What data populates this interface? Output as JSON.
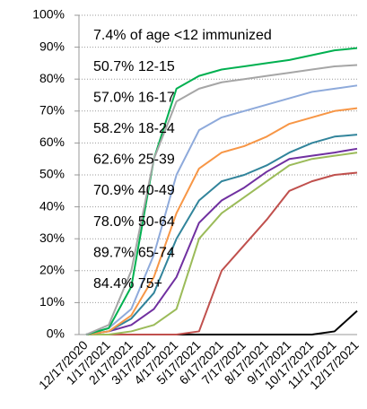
{
  "chart_data": {
    "type": "line",
    "x": [
      "12/17/2020",
      "1/17/2021",
      "2/17/2021",
      "3/17/2021",
      "4/17/2021",
      "5/17/2021",
      "6/17/2021",
      "7/17/2021",
      "8/17/2021",
      "9/17/2021",
      "10/17/2021",
      "11/17/2021",
      "12/17/2021"
    ],
    "series": [
      {
        "name": "7.4% of age <12 immunized",
        "color": "#000000",
        "values": [
          0,
          0,
          0,
          0,
          0,
          0,
          0,
          0,
          0,
          0,
          0,
          1,
          7.4
        ]
      },
      {
        "name": "50.7% 12-15",
        "color": "#c0504d",
        "values": [
          0,
          0,
          0,
          0,
          0,
          1,
          20,
          28,
          36,
          45,
          48,
          50,
          50.7
        ]
      },
      {
        "name": "57.0% 16-17",
        "color": "#9bbb59",
        "values": [
          0,
          0,
          1,
          3,
          8,
          30,
          38,
          43,
          48,
          53,
          55,
          56,
          57.0
        ]
      },
      {
        "name": "58.2% 18-24",
        "color": "#7030a0",
        "values": [
          0,
          1,
          3,
          8,
          18,
          35,
          42,
          46,
          51,
          55,
          56,
          57,
          58.2
        ]
      },
      {
        "name": "62.6% 25-39",
        "color": "#31849b",
        "values": [
          0,
          1,
          5,
          13,
          30,
          42,
          48,
          50,
          53,
          57,
          60,
          62,
          62.6
        ]
      },
      {
        "name": "70.9% 40-49",
        "color": "#f79646",
        "values": [
          0,
          1,
          6,
          18,
          38,
          52,
          57,
          59,
          62,
          66,
          68,
          70,
          70.9
        ]
      },
      {
        "name": "78.0% 50-64",
        "color": "#8eaadb",
        "values": [
          0,
          2,
          8,
          25,
          50,
          64,
          68,
          70,
          72,
          74,
          76,
          77,
          78.0
        ]
      },
      {
        "name": "89.7% 65-74",
        "color": "#00b050",
        "values": [
          0,
          2,
          15,
          55,
          77,
          81,
          83,
          84,
          85,
          86,
          87.5,
          89,
          89.7
        ]
      },
      {
        "name": "84.4% 75+",
        "color": "#a6a6a6",
        "values": [
          0,
          3,
          20,
          55,
          73,
          77,
          79,
          80,
          81,
          82,
          83,
          84,
          84.4
        ]
      }
    ],
    "ylim": [
      0,
      100
    ],
    "yticks": [
      {
        "value": 0,
        "label": "0%"
      },
      {
        "value": 10,
        "label": "10%"
      },
      {
        "value": 20,
        "label": "20%"
      },
      {
        "value": 30,
        "label": "30%"
      },
      {
        "value": 40,
        "label": "40%"
      },
      {
        "value": 50,
        "label": "50%"
      },
      {
        "value": 60,
        "label": "60%"
      },
      {
        "value": 70,
        "label": "70%"
      },
      {
        "value": 80,
        "label": "80%"
      },
      {
        "value": 90,
        "label": "90%"
      },
      {
        "value": 100,
        "label": "100%"
      }
    ],
    "grid": true
  }
}
